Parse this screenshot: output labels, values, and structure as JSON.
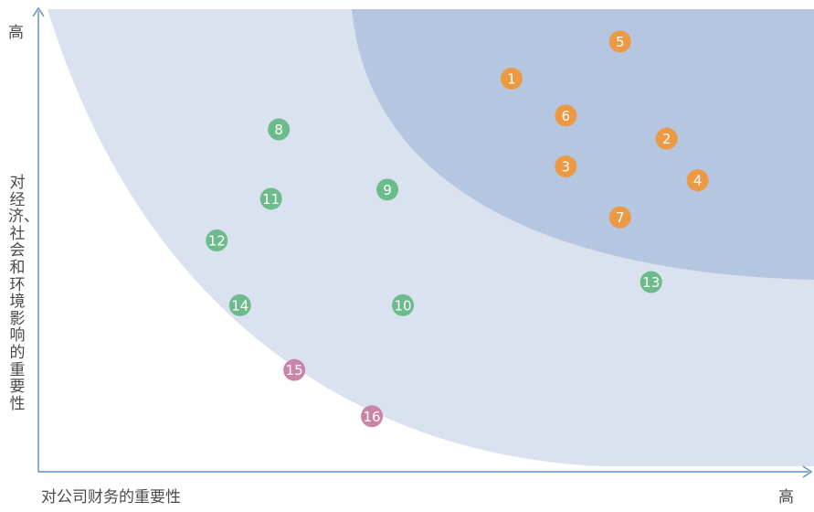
{
  "axes": {
    "y_high_label": "高",
    "x_high_label": "高",
    "x_label": "对公司财务的重要性",
    "y_label": "对经济、社会和环境影响的重要性"
  },
  "colors": {
    "zone_outer": "#dae2ef",
    "zone_inner": "#b5c6e0",
    "axis": "#5a8fc0",
    "orange": "#eb9a43",
    "green": "#6cbb8a",
    "pink": "#c984a8",
    "marker_text": "#ffffff"
  },
  "chart_data": {
    "type": "scatter",
    "xlabel": "对公司财务的重要性",
    "ylabel": "对经济、社会和环境影响的重要性",
    "xlim": [
      0,
      1
    ],
    "ylim": [
      0,
      1
    ],
    "grid": false,
    "legend": "none",
    "points": [
      {
        "label": "1",
        "x": 0.61,
        "y": 0.85,
        "group": "orange"
      },
      {
        "label": "2",
        "x": 0.81,
        "y": 0.72,
        "group": "orange"
      },
      {
        "label": "3",
        "x": 0.68,
        "y": 0.66,
        "group": "orange"
      },
      {
        "label": "4",
        "x": 0.85,
        "y": 0.63,
        "group": "orange"
      },
      {
        "label": "5",
        "x": 0.75,
        "y": 0.93,
        "group": "orange"
      },
      {
        "label": "6",
        "x": 0.68,
        "y": 0.77,
        "group": "orange"
      },
      {
        "label": "7",
        "x": 0.75,
        "y": 0.55,
        "group": "orange"
      },
      {
        "label": "8",
        "x": 0.31,
        "y": 0.74,
        "group": "green"
      },
      {
        "label": "9",
        "x": 0.45,
        "y": 0.61,
        "group": "green"
      },
      {
        "label": "10",
        "x": 0.47,
        "y": 0.36,
        "group": "green"
      },
      {
        "label": "11",
        "x": 0.3,
        "y": 0.59,
        "group": "green"
      },
      {
        "label": "12",
        "x": 0.23,
        "y": 0.5,
        "group": "green"
      },
      {
        "label": "13",
        "x": 0.79,
        "y": 0.41,
        "group": "green"
      },
      {
        "label": "14",
        "x": 0.26,
        "y": 0.36,
        "group": "green"
      },
      {
        "label": "15",
        "x": 0.33,
        "y": 0.22,
        "group": "pink"
      },
      {
        "label": "16",
        "x": 0.43,
        "y": 0.12,
        "group": "pink"
      }
    ]
  }
}
